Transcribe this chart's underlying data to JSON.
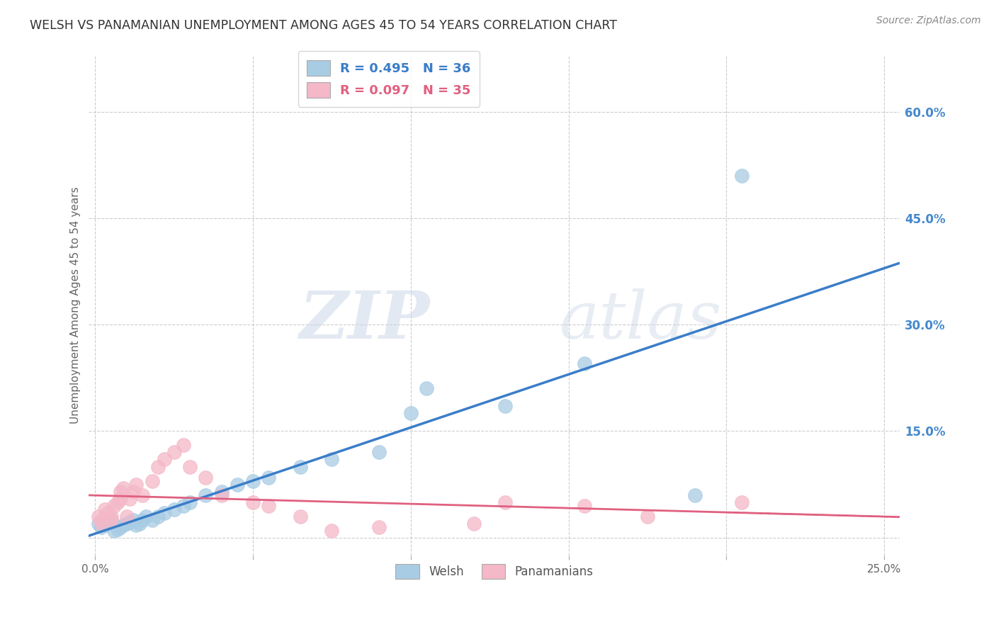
{
  "title": "WELSH VS PANAMANIAN UNEMPLOYMENT AMONG AGES 45 TO 54 YEARS CORRELATION CHART",
  "source": "Source: ZipAtlas.com",
  "ylabel": "Unemployment Among Ages 45 to 54 years",
  "welsh_R": 0.495,
  "welsh_N": 36,
  "panama_R": 0.097,
  "panama_N": 35,
  "xlim": [
    -0.002,
    0.255
  ],
  "ylim": [
    -0.025,
    0.68
  ],
  "x_ticks": [
    0.0,
    0.05,
    0.1,
    0.15,
    0.2,
    0.25
  ],
  "y_ticks": [
    0.0,
    0.15,
    0.3,
    0.45,
    0.6
  ],
  "y_tick_labels": [
    "",
    "15.0%",
    "30.0%",
    "45.0%",
    "60.0%"
  ],
  "x_tick_labels": [
    "0.0%",
    "",
    "",
    "",
    "",
    "25.0%"
  ],
  "blue_color": "#a8cce4",
  "pink_color": "#f4b8c8",
  "blue_line_color": "#3a7dc9",
  "pink_line_color": "#e06080",
  "welsh_x": [
    0.001,
    0.002,
    0.003,
    0.004,
    0.005,
    0.006,
    0.007,
    0.008,
    0.009,
    0.01,
    0.011,
    0.012,
    0.013,
    0.014,
    0.015,
    0.016,
    0.018,
    0.02,
    0.022,
    0.025,
    0.028,
    0.03,
    0.035,
    0.04,
    0.045,
    0.05,
    0.055,
    0.065,
    0.075,
    0.09,
    0.1,
    0.105,
    0.13,
    0.155,
    0.19,
    0.205
  ],
  "welsh_y": [
    0.02,
    0.015,
    0.018,
    0.022,
    0.025,
    0.01,
    0.012,
    0.015,
    0.018,
    0.02,
    0.022,
    0.025,
    0.018,
    0.02,
    0.025,
    0.03,
    0.025,
    0.03,
    0.035,
    0.04,
    0.045,
    0.05,
    0.06,
    0.065,
    0.075,
    0.08,
    0.085,
    0.1,
    0.11,
    0.12,
    0.175,
    0.21,
    0.185,
    0.245,
    0.06,
    0.51
  ],
  "panama_x": [
    0.001,
    0.002,
    0.002,
    0.003,
    0.004,
    0.005,
    0.005,
    0.006,
    0.007,
    0.008,
    0.008,
    0.009,
    0.01,
    0.011,
    0.012,
    0.013,
    0.015,
    0.018,
    0.02,
    0.022,
    0.025,
    0.028,
    0.03,
    0.035,
    0.04,
    0.05,
    0.055,
    0.065,
    0.075,
    0.09,
    0.12,
    0.13,
    0.155,
    0.175,
    0.205
  ],
  "panama_y": [
    0.03,
    0.025,
    0.02,
    0.04,
    0.035,
    0.03,
    0.025,
    0.045,
    0.05,
    0.055,
    0.065,
    0.07,
    0.03,
    0.055,
    0.065,
    0.075,
    0.06,
    0.08,
    0.1,
    0.11,
    0.12,
    0.13,
    0.1,
    0.085,
    0.06,
    0.05,
    0.045,
    0.03,
    0.01,
    0.015,
    0.02,
    0.05,
    0.045,
    0.03,
    0.05
  ],
  "watermark_zip": "ZIP",
  "watermark_atlas": "atlas",
  "legend_labels": [
    "Welsh",
    "Panamanians"
  ],
  "background_color": "#ffffff",
  "grid_color": "#cccccc",
  "title_color": "#333333",
  "axis_label_color": "#666666",
  "right_tick_color": "#4488cc"
}
